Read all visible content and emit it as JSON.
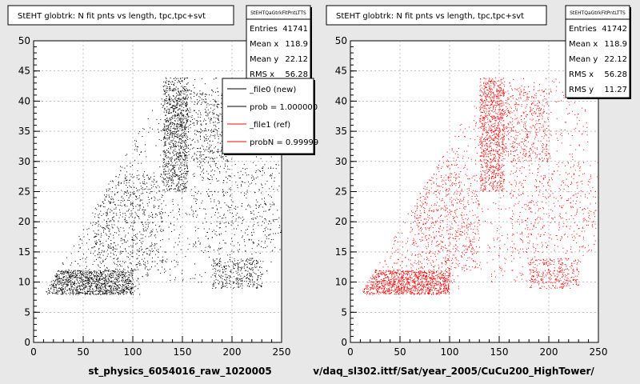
{
  "charts": [
    {
      "title": "StEHT globtrk: N fit pnts vs length, tpc,tpc+svt",
      "stats": {
        "name": "StEHTQaGtrkFitPntLTTS",
        "rows": [
          {
            "label": "Entries",
            "value": "41741"
          },
          {
            "label": "Mean x",
            "value": "118.9"
          },
          {
            "label": "Mean y",
            "value": "22.12"
          },
          {
            "label": "RMS x",
            "value": "56.28"
          }
        ]
      },
      "legend": {
        "entries": [
          {
            "label": "_file0 (new)",
            "color": "#000000"
          },
          {
            "label": "prob = 1.000000",
            "color": "#000000"
          },
          {
            "label": "_file1 (ref)",
            "color": "#ff0000"
          },
          {
            "label": "probN = 0.99999",
            "color": "#ff0000"
          }
        ]
      },
      "xlabel": "st_physics_6054016_raw_1020005",
      "color": "#000000"
    },
    {
      "title": "StEHT globtrk: N fit pnts vs length, tpc,tpc+svt",
      "stats": {
        "name": "StEHTQaGtrkFitPntLTTS",
        "rows": [
          {
            "label": "Entries",
            "value": "41742"
          },
          {
            "label": "Mean x",
            "value": "118.9"
          },
          {
            "label": "Mean y",
            "value": "22.12"
          },
          {
            "label": "RMS x",
            "value": "56.28"
          },
          {
            "label": "RMS y",
            "value": "11.27"
          }
        ]
      },
      "xlabel": "v/daq_sl302.ittf/Sat/year_2005/CuCu200_HighTower/",
      "color": "#ff0000"
    }
  ],
  "chart_data": [
    {
      "type": "scatter",
      "title": "StEHT globtrk: N fit pnts vs length, tpc,tpc+svt",
      "xlabel": "st_physics_6054016_raw_1020005",
      "ylabel": "",
      "xlim": [
        0,
        250
      ],
      "ylim": [
        0,
        50
      ],
      "xticks": [
        0,
        50,
        100,
        150,
        200,
        250
      ],
      "yticks": [
        0,
        5,
        10,
        15,
        20,
        25,
        30,
        35,
        40,
        45,
        50
      ],
      "grid": true,
      "series": [
        {
          "name": "_file0 (new)",
          "color": "#000000"
        }
      ],
      "density_regions": [
        {
          "x": [
            12,
            100
          ],
          "y": [
            8,
            12
          ],
          "weight": 0.22
        },
        {
          "x": [
            20,
            110
          ],
          "y": [
            8,
            45
          ],
          "weight": 0.18
        },
        {
          "x": [
            130,
            155
          ],
          "y": [
            25,
            44
          ],
          "weight": 0.16
        },
        {
          "x": [
            110,
            240
          ],
          "y": [
            10,
            44
          ],
          "weight": 0.12
        },
        {
          "x": [
            140,
            200
          ],
          "y": [
            30,
            42
          ],
          "weight": 0.1
        },
        {
          "x": [
            60,
            130
          ],
          "y": [
            12,
            28
          ],
          "weight": 0.1
        },
        {
          "x": [
            180,
            230
          ],
          "y": [
            9,
            14
          ],
          "weight": 0.06
        },
        {
          "x": [
            160,
            250
          ],
          "y": [
            15,
            30
          ],
          "weight": 0.06
        }
      ],
      "stats": {
        "Entries": 41741,
        "Mean x": 118.9,
        "Mean y": 22.12,
        "RMS x": 56.28
      },
      "legend_position": "top-right"
    },
    {
      "type": "scatter",
      "title": "StEHT globtrk: N fit pnts vs length, tpc,tpc+svt",
      "xlabel": "v/daq_sl302.ittf/Sat/year_2005/CuCu200_HighTower/",
      "ylabel": "",
      "xlim": [
        0,
        250
      ],
      "ylim": [
        0,
        50
      ],
      "xticks": [
        0,
        50,
        100,
        150,
        200,
        250
      ],
      "yticks": [
        0,
        5,
        10,
        15,
        20,
        25,
        30,
        35,
        40,
        45,
        50
      ],
      "grid": true,
      "series": [
        {
          "name": "_file1 (ref)",
          "color": "#ff0000"
        }
      ],
      "density_regions": [
        {
          "x": [
            12,
            100
          ],
          "y": [
            8,
            12
          ],
          "weight": 0.22
        },
        {
          "x": [
            20,
            110
          ],
          "y": [
            8,
            45
          ],
          "weight": 0.18
        },
        {
          "x": [
            130,
            155
          ],
          "y": [
            25,
            44
          ],
          "weight": 0.16
        },
        {
          "x": [
            110,
            240
          ],
          "y": [
            10,
            44
          ],
          "weight": 0.12
        },
        {
          "x": [
            140,
            200
          ],
          "y": [
            30,
            42
          ],
          "weight": 0.1
        },
        {
          "x": [
            60,
            130
          ],
          "y": [
            12,
            28
          ],
          "weight": 0.1
        },
        {
          "x": [
            180,
            230
          ],
          "y": [
            9,
            14
          ],
          "weight": 0.06
        },
        {
          "x": [
            160,
            250
          ],
          "y": [
            15,
            30
          ],
          "weight": 0.06
        }
      ],
      "stats": {
        "Entries": 41742,
        "Mean x": 118.9,
        "Mean y": 22.12,
        "RMS x": 56.28,
        "RMS y": 11.27
      }
    }
  ]
}
